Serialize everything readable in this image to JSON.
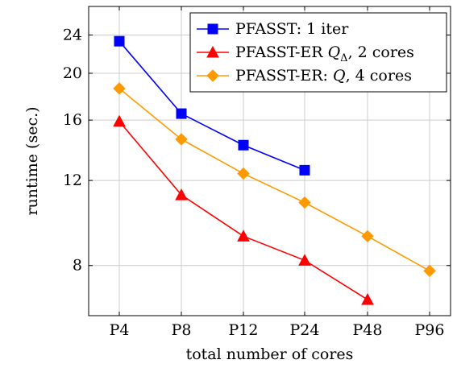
{
  "chart_data": {
    "type": "line",
    "categories": [
      "P4",
      "P8",
      "P12",
      "P24",
      "P48",
      "P96"
    ],
    "xlabel": "total number of cores",
    "ylabel": "runtime (sec.)",
    "yscale": "log",
    "yticks": [
      8,
      12,
      16,
      20,
      24
    ],
    "ylim": [
      6.3,
      27.5
    ],
    "grid": true,
    "legend_position": "top-right",
    "series": [
      {
        "name": "PFASST: 1 iter",
        "name_parts": [
          "PFASST: 1 iter"
        ],
        "color": "#0000ff",
        "marker": "square",
        "values": [
          23.3,
          16.5,
          14.2,
          12.6,
          null,
          null
        ]
      },
      {
        "name": "PFASST-ER Q_Δ, 2 cores",
        "name_parts": [
          "PFASST-ER ",
          "Q",
          "Δ",
          ", 2 cores"
        ],
        "color": "#ff0000",
        "marker": "triangle",
        "values": [
          15.9,
          11.2,
          9.2,
          8.2,
          6.8,
          null
        ]
      },
      {
        "name": "PFASST-ER: Q, 4 cores",
        "name_parts": [
          "PFASST-ER: ",
          "Q",
          ", 4 cores"
        ],
        "color": "#ff9900",
        "marker": "diamond",
        "values": [
          18.6,
          14.6,
          12.4,
          10.8,
          9.2,
          7.8
        ]
      }
    ]
  }
}
